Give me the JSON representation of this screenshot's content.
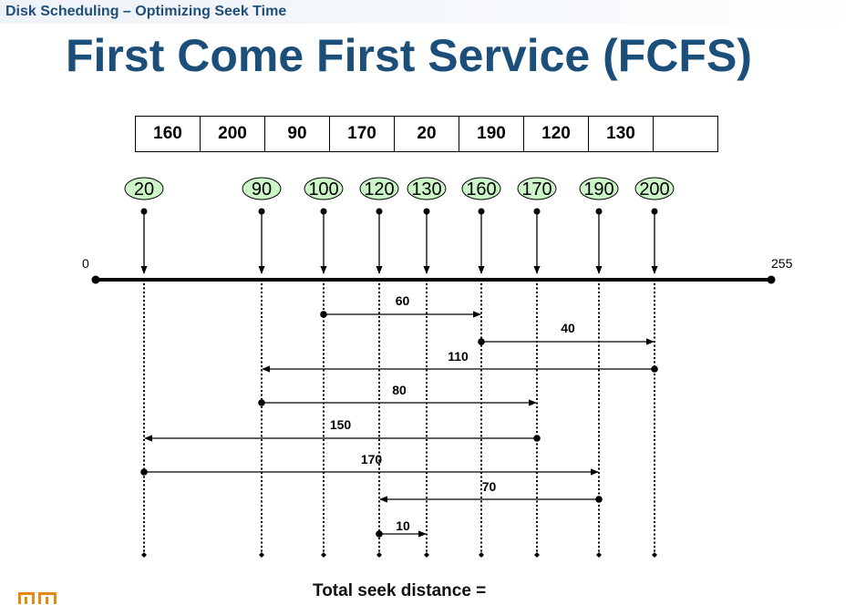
{
  "header": {
    "subtitle": "Disk Scheduling – Optimizing Seek Time"
  },
  "title": "First Come First Service (FCFS)",
  "queue": [
    "160",
    "200",
    "90",
    "170",
    "20",
    "190",
    "120",
    "130",
    ""
  ],
  "axis": {
    "min_label": "0",
    "max_label": "255",
    "min": 0,
    "max": 255
  },
  "tracks": [
    "20",
    "90",
    "100",
    "120",
    "130",
    "160",
    "170",
    "190",
    "200"
  ],
  "moves": [
    {
      "from": 100,
      "to": 160,
      "distance": "60"
    },
    {
      "from": 160,
      "to": 200,
      "distance": "40"
    },
    {
      "from": 200,
      "to": 90,
      "distance": "110"
    },
    {
      "from": 90,
      "to": 170,
      "distance": "80"
    },
    {
      "from": 170,
      "to": 20,
      "distance": "150"
    },
    {
      "from": 20,
      "to": 190,
      "distance": "170"
    },
    {
      "from": 190,
      "to": 120,
      "distance": "70"
    },
    {
      "from": 120,
      "to": 130,
      "distance": "10"
    }
  ],
  "colors": {
    "title": "#1b4f7a",
    "subtitle": "#1f4e79",
    "track_bubble": "#ccf5c8",
    "logo": "#e48a12"
  },
  "footer": {
    "total_label": "Total seek distance ="
  },
  "logo_icon": "slide-logo-icon"
}
